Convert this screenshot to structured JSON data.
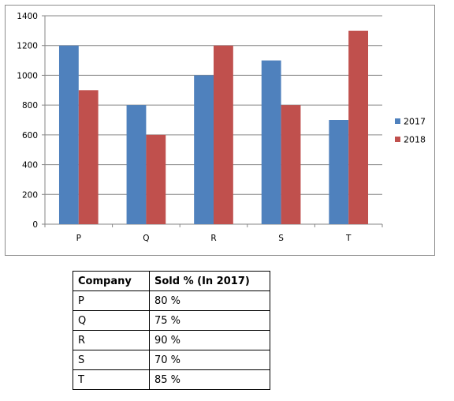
{
  "chart_data": {
    "type": "bar",
    "categories": [
      "P",
      "Q",
      "R",
      "S",
      "T"
    ],
    "series": [
      {
        "name": "2017",
        "values": [
          1200,
          800,
          1000,
          1100,
          700
        ]
      },
      {
        "name": "2018",
        "values": [
          900,
          600,
          1200,
          800,
          1300
        ]
      }
    ],
    "title": "",
    "xlabel": "",
    "ylabel": "",
    "ylim": [
      0,
      1400
    ],
    "yticks": [
      0,
      200,
      400,
      600,
      800,
      1000,
      1200,
      1400
    ],
    "grid": true,
    "legend": "right",
    "colors": [
      "#4f81bd",
      "#c0504d"
    ]
  },
  "table": {
    "headers": [
      "Company",
      "Sold % (In 2017)"
    ],
    "rows": [
      [
        "P",
        "80 %"
      ],
      [
        "Q",
        "75 %"
      ],
      [
        "R",
        "90 %"
      ],
      [
        "S",
        "70 %"
      ],
      [
        "T",
        "85 %"
      ]
    ]
  }
}
